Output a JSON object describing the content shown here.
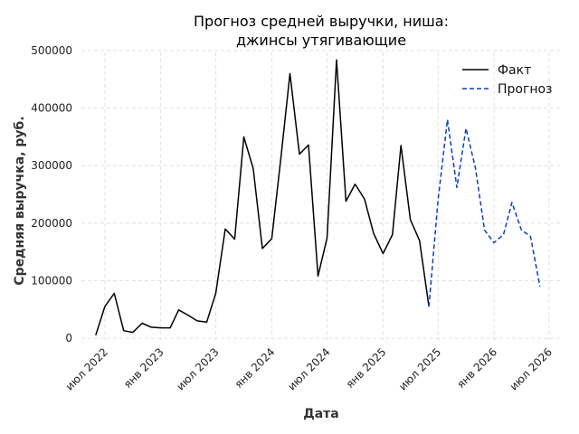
{
  "chart_data": {
    "type": "line",
    "title": [
      "Прогноз средней выручки, ниша:",
      "джинсы утягивающие"
    ],
    "xlabel": "Дата",
    "ylabel": "Средняя выручка, руб.",
    "ylim": [
      0,
      500000
    ],
    "yticks": [
      0,
      100000,
      200000,
      300000,
      400000,
      500000
    ],
    "ytick_labels": [
      "0",
      "100000",
      "200000",
      "300000",
      "400000",
      "500000"
    ],
    "xlim": [
      "2022-04-15",
      "2026-08-15"
    ],
    "xticks": [
      "2022-07-01",
      "2023-01-01",
      "2023-07-01",
      "2024-01-01",
      "2024-07-01",
      "2025-01-01",
      "2025-07-01",
      "2026-01-01",
      "2026-07-01"
    ],
    "xtick_labels": [
      "июл 2022",
      "янв 2023",
      "июл 2023",
      "янв 2024",
      "июл 2024",
      "янв 2025",
      "июл 2025",
      "янв 2026",
      "июл 2026"
    ],
    "grid": true,
    "legend_position": "top-right",
    "series": [
      {
        "name": "Факт",
        "color": "#000000",
        "style": "solid",
        "points": [
          {
            "x": "2022-06-01",
            "y": 5000
          },
          {
            "x": "2022-07-01",
            "y": 55000
          },
          {
            "x": "2022-08-01",
            "y": 78000
          },
          {
            "x": "2022-09-01",
            "y": 13000
          },
          {
            "x": "2022-10-01",
            "y": 10000
          },
          {
            "x": "2022-11-01",
            "y": 26000
          },
          {
            "x": "2022-12-01",
            "y": 19000
          },
          {
            "x": "2023-01-01",
            "y": 18000
          },
          {
            "x": "2023-02-01",
            "y": 18000
          },
          {
            "x": "2023-03-01",
            "y": 49000
          },
          {
            "x": "2023-04-01",
            "y": 40000
          },
          {
            "x": "2023-05-01",
            "y": 30000
          },
          {
            "x": "2023-06-01",
            "y": 28000
          },
          {
            "x": "2023-07-01",
            "y": 78000
          },
          {
            "x": "2023-08-01",
            "y": 190000
          },
          {
            "x": "2023-09-01",
            "y": 172000
          },
          {
            "x": "2023-10-01",
            "y": 350000
          },
          {
            "x": "2023-11-01",
            "y": 295000
          },
          {
            "x": "2023-12-01",
            "y": 156000
          },
          {
            "x": "2024-01-01",
            "y": 173000
          },
          {
            "x": "2024-02-01",
            "y": 318000
          },
          {
            "x": "2024-03-01",
            "y": 460000
          },
          {
            "x": "2024-04-01",
            "y": 320000
          },
          {
            "x": "2024-05-01",
            "y": 336000
          },
          {
            "x": "2024-06-01",
            "y": 108000
          },
          {
            "x": "2024-07-01",
            "y": 174000
          },
          {
            "x": "2024-08-01",
            "y": 484000
          },
          {
            "x": "2024-09-01",
            "y": 238000
          },
          {
            "x": "2024-10-01",
            "y": 268000
          },
          {
            "x": "2024-11-01",
            "y": 242000
          },
          {
            "x": "2024-12-01",
            "y": 182000
          },
          {
            "x": "2025-01-01",
            "y": 147000
          },
          {
            "x": "2025-02-01",
            "y": 180000
          },
          {
            "x": "2025-03-01",
            "y": 335000
          },
          {
            "x": "2025-04-01",
            "y": 206000
          },
          {
            "x": "2025-05-01",
            "y": 170000
          },
          {
            "x": "2025-06-01",
            "y": 55000
          }
        ]
      },
      {
        "name": "Прогноз",
        "color": "#0a3fc2",
        "style": "dashed",
        "points": [
          {
            "x": "2025-06-01",
            "y": 55000
          },
          {
            "x": "2025-07-01",
            "y": 240000
          },
          {
            "x": "2025-08-01",
            "y": 380000
          },
          {
            "x": "2025-09-01",
            "y": 262000
          },
          {
            "x": "2025-10-01",
            "y": 365000
          },
          {
            "x": "2025-11-01",
            "y": 296000
          },
          {
            "x": "2025-12-01",
            "y": 188000
          },
          {
            "x": "2026-01-01",
            "y": 166000
          },
          {
            "x": "2026-02-01",
            "y": 180000
          },
          {
            "x": "2026-03-01",
            "y": 236000
          },
          {
            "x": "2026-04-01",
            "y": 188000
          },
          {
            "x": "2026-05-01",
            "y": 177000
          },
          {
            "x": "2026-06-01",
            "y": 90000
          }
        ]
      }
    ]
  }
}
